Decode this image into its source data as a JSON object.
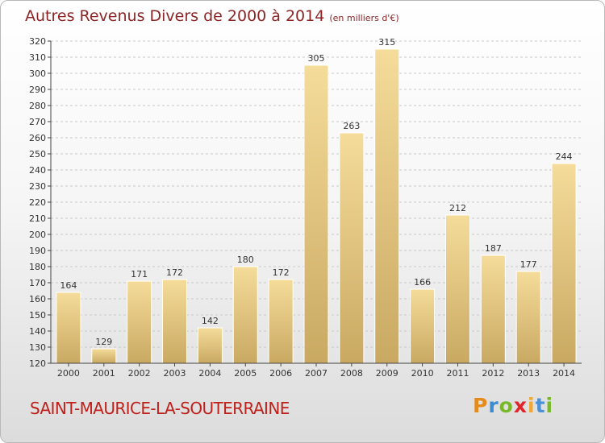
{
  "title": "Autres Revenus Divers de 2000 à 2014",
  "subtitle": "(en milliers d'€)",
  "place": "SAINT-MAURICE-LA-SOUTERRAINE",
  "logo": {
    "letters": [
      "P",
      "r",
      "o",
      "x",
      "i",
      "t",
      "i"
    ],
    "colors": [
      "#e58a1c",
      "#3b8bd0",
      "#79b928",
      "#e0262b",
      "#f0a830",
      "#4a90d6",
      "#79b928"
    ]
  },
  "colors": {
    "title": "#8c2626",
    "place": "#c0201a",
    "bar_top": "#f5dc9a",
    "bar_bottom": "#c9a962",
    "grid": "#c8c8c8"
  },
  "chart_data": {
    "type": "bar",
    "categories": [
      "2000",
      "2001",
      "2002",
      "2003",
      "2004",
      "2005",
      "2006",
      "2007",
      "2008",
      "2009",
      "2010",
      "2011",
      "2012",
      "2013",
      "2014"
    ],
    "values": [
      164,
      129,
      171,
      172,
      142,
      180,
      172,
      305,
      263,
      315,
      166,
      212,
      187,
      177,
      244
    ],
    "ylim": [
      120,
      320
    ],
    "yticks": [
      120,
      130,
      140,
      150,
      160,
      170,
      180,
      190,
      200,
      210,
      220,
      230,
      240,
      250,
      260,
      270,
      280,
      290,
      300,
      310,
      320
    ],
    "grid": true
  }
}
